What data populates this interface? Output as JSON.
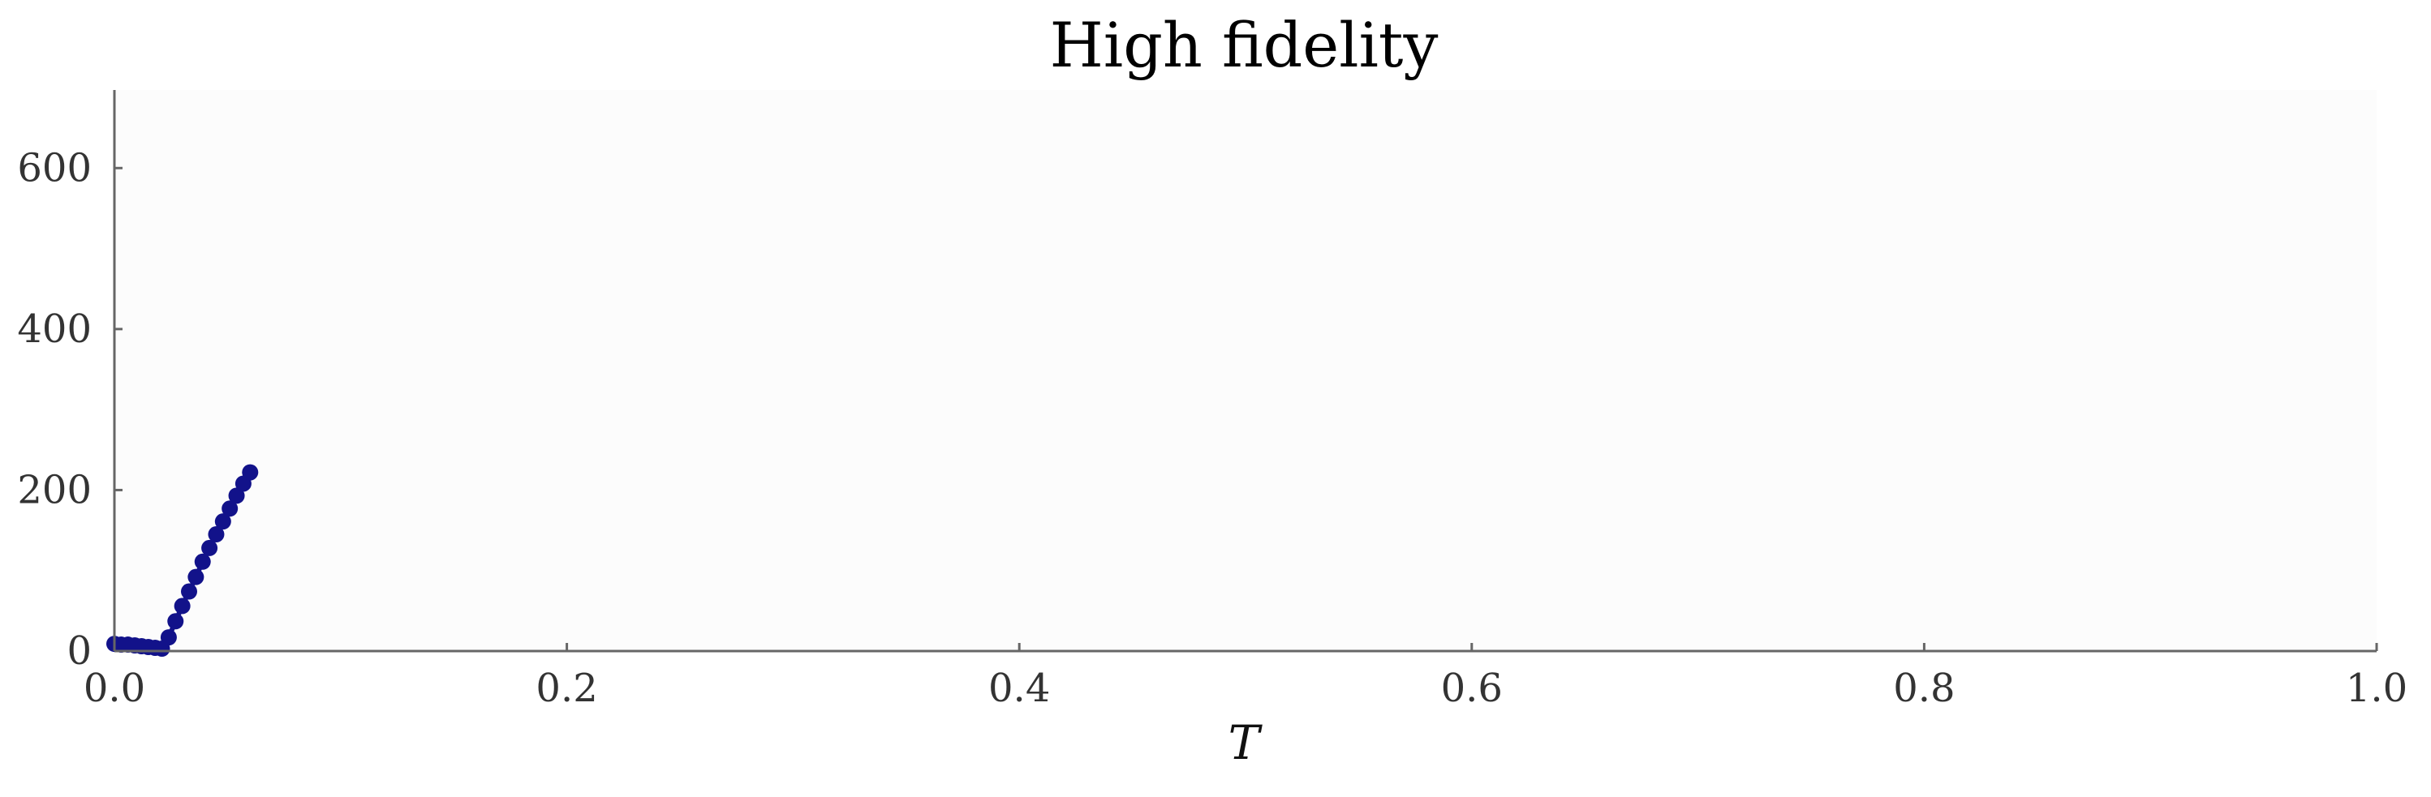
{
  "chart_data": {
    "type": "scatter",
    "title": "High fidelity",
    "xlabel": "T",
    "ylabel": "",
    "xlim": [
      0.0,
      1.0
    ],
    "ylim": [
      0,
      700
    ],
    "xticks": [
      0.0,
      0.2,
      0.4,
      0.6,
      0.8,
      1.0
    ],
    "xtick_labels": [
      "0.0",
      "0.2",
      "0.4",
      "0.6",
      "0.8",
      "1.0"
    ],
    "yticks": [
      0,
      200,
      400,
      600
    ],
    "ytick_labels": [
      "0",
      "200",
      "400",
      "600"
    ],
    "grid": false,
    "legend": null,
    "series": [
      {
        "color": "#12128a",
        "marker": "circle",
        "connected": true,
        "points": [
          {
            "x": 0.0,
            "y": 9
          },
          {
            "x": 0.003,
            "y": 8
          },
          {
            "x": 0.006,
            "y": 8
          },
          {
            "x": 0.009,
            "y": 7
          },
          {
            "x": 0.012,
            "y": 6
          },
          {
            "x": 0.015,
            "y": 5
          },
          {
            "x": 0.018,
            "y": 4
          },
          {
            "x": 0.021,
            "y": 3
          },
          {
            "x": 0.024,
            "y": 17
          },
          {
            "x": 0.027,
            "y": 37
          },
          {
            "x": 0.03,
            "y": 56
          },
          {
            "x": 0.033,
            "y": 74
          },
          {
            "x": 0.036,
            "y": 92
          },
          {
            "x": 0.039,
            "y": 111
          },
          {
            "x": 0.042,
            "y": 128
          },
          {
            "x": 0.045,
            "y": 145
          },
          {
            "x": 0.048,
            "y": 161
          },
          {
            "x": 0.051,
            "y": 177
          },
          {
            "x": 0.054,
            "y": 193
          },
          {
            "x": 0.057,
            "y": 208
          },
          {
            "x": 0.06,
            "y": 222
          }
        ]
      }
    ]
  }
}
